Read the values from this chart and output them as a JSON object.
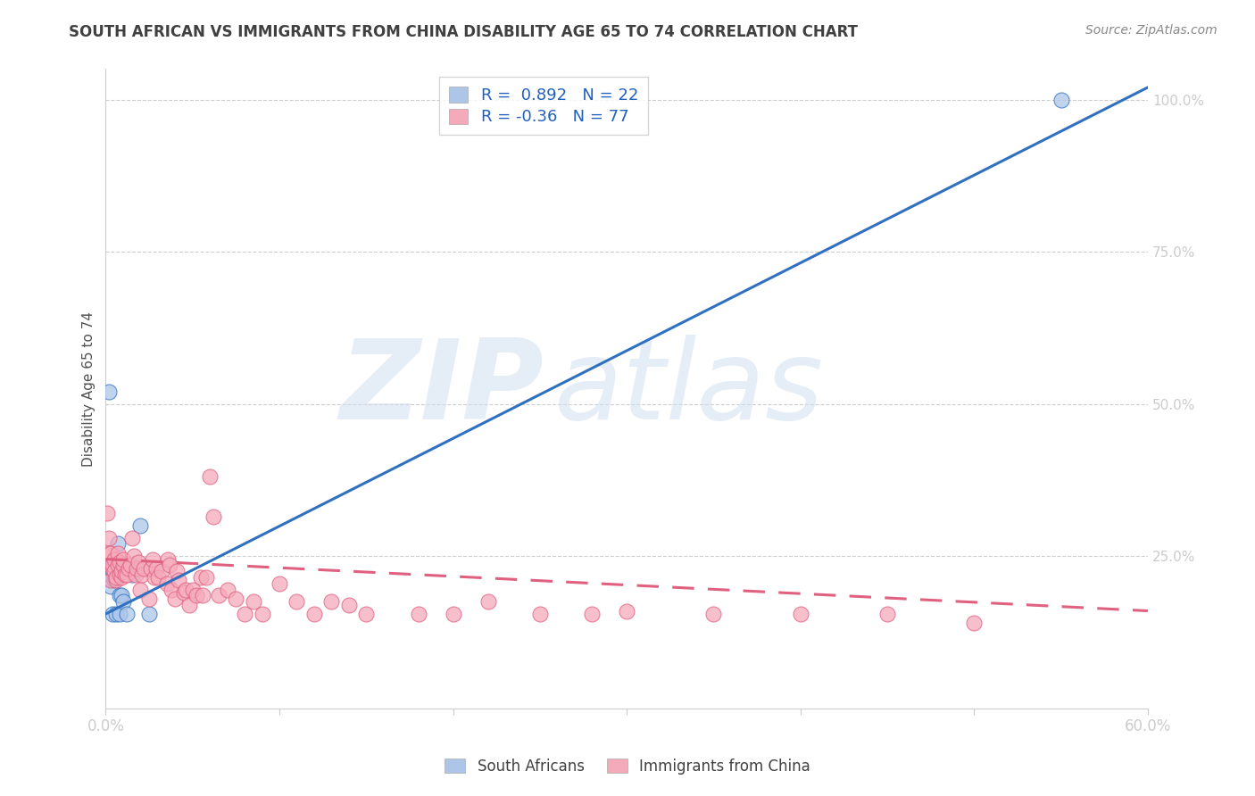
{
  "title": "SOUTH AFRICAN VS IMMIGRANTS FROM CHINA DISABILITY AGE 65 TO 74 CORRELATION CHART",
  "source": "Source: ZipAtlas.com",
  "ylabel": "Disability Age 65 to 74",
  "xmin": 0.0,
  "xmax": 0.6,
  "ymin": 0.0,
  "ymax": 1.05,
  "sa_R": 0.892,
  "sa_N": 22,
  "china_R": -0.36,
  "china_N": 77,
  "sa_color": "#adc6e8",
  "china_color": "#f5aabb",
  "sa_line_color": "#3070c0",
  "china_line_color": "#e06080",
  "watermark_zip": "ZIP",
  "watermark_atlas": "atlas",
  "grid_color": "#c8c8c8",
  "bg_color": "#ffffff",
  "title_color": "#404040",
  "source_color": "#888888",
  "right_tick_color": "#4488cc",
  "xtick_color": "#4488cc",
  "sa_x": [
    0.001,
    0.002,
    0.003,
    0.003,
    0.004,
    0.004,
    0.005,
    0.005,
    0.006,
    0.006,
    0.006,
    0.007,
    0.008,
    0.008,
    0.009,
    0.01,
    0.012,
    0.015,
    0.02,
    0.025,
    0.55,
    0.002
  ],
  "sa_y": [
    0.215,
    0.22,
    0.235,
    0.2,
    0.225,
    0.155,
    0.21,
    0.22,
    0.23,
    0.215,
    0.155,
    0.27,
    0.155,
    0.185,
    0.185,
    0.175,
    0.155,
    0.22,
    0.3,
    0.155,
    1.0,
    0.52
  ],
  "china_x": [
    0.001,
    0.002,
    0.002,
    0.003,
    0.003,
    0.004,
    0.004,
    0.005,
    0.005,
    0.006,
    0.006,
    0.007,
    0.007,
    0.008,
    0.008,
    0.009,
    0.009,
    0.01,
    0.01,
    0.011,
    0.012,
    0.013,
    0.014,
    0.015,
    0.016,
    0.017,
    0.018,
    0.019,
    0.02,
    0.021,
    0.022,
    0.025,
    0.026,
    0.027,
    0.028,
    0.029,
    0.03,
    0.032,
    0.035,
    0.036,
    0.037,
    0.038,
    0.04,
    0.041,
    0.042,
    0.045,
    0.046,
    0.048,
    0.05,
    0.052,
    0.055,
    0.056,
    0.058,
    0.06,
    0.062,
    0.065,
    0.07,
    0.075,
    0.08,
    0.085,
    0.09,
    0.1,
    0.11,
    0.12,
    0.13,
    0.14,
    0.15,
    0.18,
    0.2,
    0.22,
    0.25,
    0.28,
    0.3,
    0.35,
    0.4,
    0.45,
    0.5
  ],
  "china_y": [
    0.32,
    0.28,
    0.255,
    0.21,
    0.255,
    0.23,
    0.235,
    0.245,
    0.225,
    0.21,
    0.215,
    0.235,
    0.255,
    0.22,
    0.24,
    0.215,
    0.225,
    0.235,
    0.245,
    0.22,
    0.22,
    0.23,
    0.235,
    0.28,
    0.25,
    0.22,
    0.23,
    0.24,
    0.195,
    0.22,
    0.23,
    0.18,
    0.23,
    0.245,
    0.215,
    0.23,
    0.215,
    0.225,
    0.205,
    0.245,
    0.235,
    0.195,
    0.18,
    0.225,
    0.21,
    0.19,
    0.195,
    0.17,
    0.195,
    0.185,
    0.215,
    0.185,
    0.215,
    0.38,
    0.315,
    0.185,
    0.195,
    0.18,
    0.155,
    0.175,
    0.155,
    0.205,
    0.175,
    0.155,
    0.175,
    0.17,
    0.155,
    0.155,
    0.155,
    0.175,
    0.155,
    0.155,
    0.16,
    0.155,
    0.155,
    0.155,
    0.14
  ],
  "sa_trendline_x": [
    0.0,
    0.6
  ],
  "sa_trendline_y": [
    0.155,
    1.02
  ],
  "china_trendline_x": [
    0.0,
    0.6
  ],
  "china_trendline_y": [
    0.245,
    0.16
  ]
}
